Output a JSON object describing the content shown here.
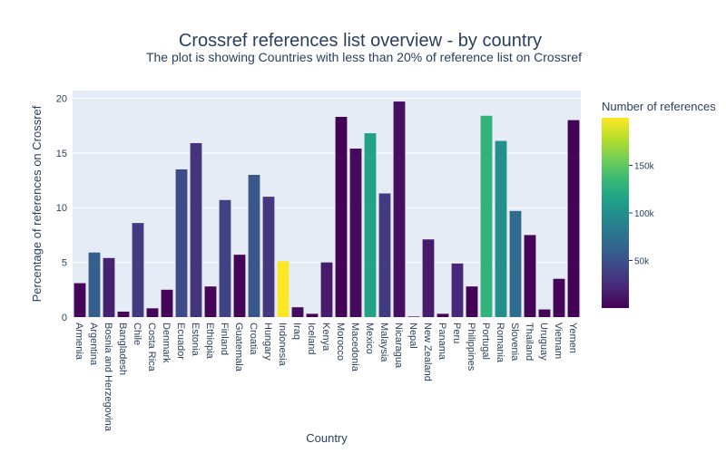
{
  "chart_data": {
    "type": "bar",
    "title": "Crossref references list overview - by country",
    "subtitle": "The plot is showing Countries with less than 20% of reference list on Crossref",
    "xlabel": "Country",
    "ylabel": "Percentage of references on Crossref",
    "ylim": [
      0,
      20.7
    ],
    "yticks": [
      0,
      5,
      10,
      15,
      20
    ],
    "grid": true,
    "categories": [
      "Armenia",
      "Argentina",
      "Bosnia and Herzegovina",
      "Bangladesh",
      "Chile",
      "Costa Rica",
      "Denmark",
      "Ecuador",
      "Estonia",
      "Ethiopia",
      "Finland",
      "Guatemala",
      "Croatia",
      "Hungary",
      "Indonesia",
      "Iraq",
      "Iceland",
      "Kenya",
      "Morocco",
      "Macedonia",
      "Mexico",
      "Malaysia",
      "Nicaragua",
      "Nepal",
      "New Zealand",
      "Panama",
      "Peru",
      "Philippines",
      "Portugal",
      "Romania",
      "Slovenia",
      "Thailand",
      "Uruguay",
      "Vietnam",
      "Yemen"
    ],
    "values": [
      3.1,
      5.9,
      5.4,
      0.5,
      8.6,
      0.8,
      2.5,
      13.5,
      15.9,
      2.8,
      10.7,
      5.7,
      13.0,
      11.0,
      5.1,
      0.9,
      0.3,
      5.0,
      18.3,
      15.4,
      16.8,
      11.3,
      19.7,
      0.05,
      7.1,
      0.3,
      4.9,
      2.8,
      18.4,
      16.1,
      9.7,
      7.5,
      0.7,
      3.5,
      18.0
    ],
    "color_values": [
      3000,
      60000,
      18000,
      2000,
      35000,
      1500,
      3000,
      45000,
      30000,
      2000,
      40000,
      2000,
      55000,
      32000,
      200000,
      6000,
      2000,
      15000,
      1000,
      5000,
      115000,
      35000,
      8000,
      500,
      15000,
      1000,
      22000,
      1000,
      130000,
      100000,
      70000,
      2000,
      1000,
      3000,
      1000
    ],
    "colorbar": {
      "title": "Number of references",
      "range": [
        0,
        200000
      ],
      "ticks": [
        50000,
        100000,
        150000
      ],
      "tick_labels": [
        "50k",
        "100k",
        "150k"
      ],
      "colorscale": "Viridis"
    }
  }
}
